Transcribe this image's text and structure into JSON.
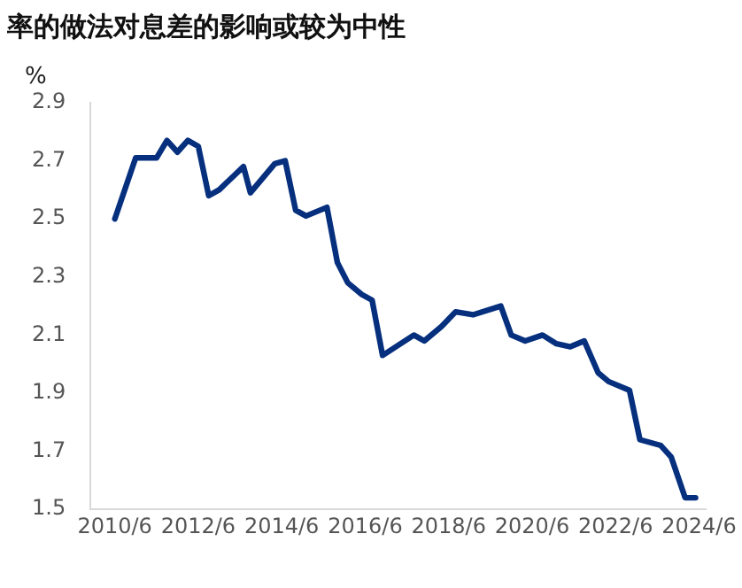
{
  "chart_data": {
    "type": "line",
    "title": "率的做法对息差的影响或较为中性",
    "ylabel": "%",
    "x": [
      "2010-06",
      "2010-12",
      "2011-06",
      "2011-09",
      "2011-12",
      "2012-03",
      "2012-06",
      "2012-09",
      "2012-12",
      "2013-07",
      "2013-09",
      "2014-04",
      "2014-07",
      "2014-10",
      "2015-01",
      "2015-07",
      "2015-10",
      "2016-01",
      "2016-05",
      "2016-08",
      "2016-11",
      "2017-08",
      "2017-11",
      "2018-04",
      "2018-08",
      "2019-01",
      "2019-09",
      "2019-12",
      "2020-04",
      "2020-09",
      "2021-01",
      "2021-05",
      "2021-09",
      "2022-01",
      "2022-04",
      "2022-10",
      "2023-01",
      "2023-07",
      "2023-10",
      "2024-02",
      "2024-05"
    ],
    "series": [
      {
        "color": "#06307e",
        "values": [
          2.5,
          2.71,
          2.71,
          2.77,
          2.73,
          2.77,
          2.75,
          2.58,
          2.6,
          2.68,
          2.59,
          2.69,
          2.7,
          2.53,
          2.51,
          2.54,
          2.35,
          2.28,
          2.24,
          2.22,
          2.03,
          2.1,
          2.08,
          2.13,
          2.18,
          2.17,
          2.2,
          2.1,
          2.08,
          2.1,
          2.07,
          2.06,
          2.08,
          1.97,
          1.94,
          1.91,
          1.74,
          1.72,
          1.68,
          1.54,
          1.54
        ]
      }
    ],
    "xlim": [
      "2009-11",
      "2024-08"
    ],
    "xticks": [
      {
        "value": "2010-06",
        "label": "2010/6"
      },
      {
        "value": "2012-06",
        "label": "2012/6"
      },
      {
        "value": "2014-06",
        "label": "2014/6"
      },
      {
        "value": "2016-06",
        "label": "2016/6"
      },
      {
        "value": "2018-06",
        "label": "2018/6"
      },
      {
        "value": "2020-06",
        "label": "2020/6"
      },
      {
        "value": "2022-06",
        "label": "2022/6"
      },
      {
        "value": "2024-06",
        "label": "2024/6"
      }
    ],
    "ylim": [
      1.5,
      2.9
    ],
    "yticks": [
      1.5,
      1.7,
      1.9,
      2.1,
      2.3,
      2.5,
      2.7,
      2.9
    ],
    "grid": false,
    "legend": false,
    "marker": "none",
    "line_style": "solid"
  }
}
